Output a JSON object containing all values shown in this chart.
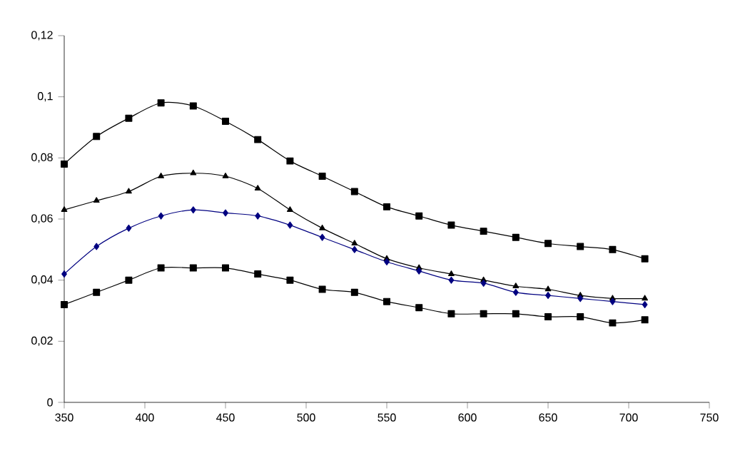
{
  "chart_data": {
    "type": "line",
    "x": [
      350,
      370,
      390,
      410,
      430,
      450,
      470,
      490,
      510,
      530,
      550,
      570,
      590,
      610,
      630,
      650,
      670,
      690,
      710
    ],
    "series": [
      {
        "color": "#000000",
        "marker": "square",
        "values": [
          0.078,
          0.087,
          0.093,
          0.098,
          0.097,
          0.092,
          0.086,
          0.079,
          0.074,
          0.069,
          0.064,
          0.061,
          0.058,
          0.056,
          0.054,
          0.052,
          0.051,
          0.05,
          0.047
        ]
      },
      {
        "color": "#000000",
        "marker": "triangle",
        "values": [
          0.063,
          0.066,
          0.069,
          0.074,
          0.075,
          0.074,
          0.07,
          0.063,
          0.057,
          0.052,
          0.047,
          0.044,
          0.042,
          0.04,
          0.038,
          0.037,
          0.035,
          0.034,
          0.034
        ]
      },
      {
        "color": "#000080",
        "marker": "diamond",
        "values": [
          0.042,
          0.051,
          0.057,
          0.061,
          0.063,
          0.062,
          0.061,
          0.058,
          0.054,
          0.05,
          0.046,
          0.043,
          0.04,
          0.039,
          0.036,
          0.035,
          0.034,
          0.033,
          0.032
        ]
      },
      {
        "color": "#000000",
        "marker": "square",
        "values": [
          0.032,
          0.036,
          0.04,
          0.044,
          0.044,
          0.044,
          0.042,
          0.04,
          0.037,
          0.036,
          0.033,
          0.031,
          0.029,
          0.029,
          0.029,
          0.028,
          0.028,
          0.026,
          0.027
        ]
      }
    ],
    "xlim": [
      350,
      750
    ],
    "xticks": [
      350,
      400,
      450,
      500,
      550,
      600,
      650,
      700,
      750
    ],
    "ylim": [
      0,
      0.12
    ],
    "yticks": [
      0,
      {
        "value": 0.02,
        "label": "0,02"
      },
      {
        "value": 0.04,
        "label": "0,04"
      },
      {
        "value": 0.06,
        "label": "0,06"
      },
      {
        "value": 0.08,
        "label": "0,08"
      },
      {
        "value": 0.1,
        "label": "0,1"
      },
      {
        "value": 0.12,
        "label": "0,12"
      }
    ],
    "line_style": "solid"
  }
}
